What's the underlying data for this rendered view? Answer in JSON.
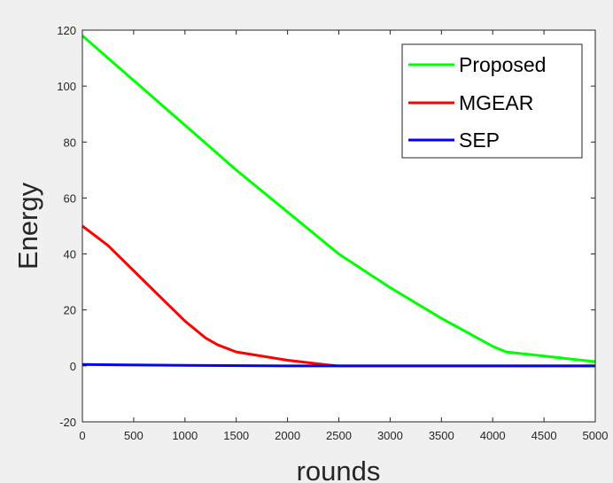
{
  "chart_data": {
    "type": "line",
    "title": "",
    "xlabel": "rounds",
    "ylabel": "Energy",
    "xlim": [
      0,
      5000
    ],
    "ylim": [
      -20,
      120
    ],
    "xticks": [
      0,
      500,
      1000,
      1500,
      2000,
      2500,
      3000,
      3500,
      4000,
      4500,
      5000
    ],
    "yticks": [
      -20,
      0,
      20,
      40,
      60,
      80,
      100,
      120
    ],
    "grid": false,
    "legend_position": "top-right",
    "series": [
      {
        "name": "Proposed",
        "color": "#00ff00",
        "x": [
          0,
          500,
          1000,
          1500,
          2000,
          2100,
          2500,
          3000,
          3500,
          4000,
          4130,
          4500,
          5000
        ],
        "y": [
          118,
          102,
          86,
          70,
          55,
          52,
          40,
          28,
          17,
          7,
          5,
          3.5,
          1.5
        ]
      },
      {
        "name": "MGEAR",
        "color": "#ff0000",
        "x": [
          0,
          250,
          500,
          750,
          1000,
          1200,
          1320,
          1500,
          2000,
          2400,
          2500,
          5000
        ],
        "y": [
          50,
          43,
          34,
          25,
          16,
          10,
          7.5,
          5,
          2,
          0.3,
          0,
          0
        ]
      },
      {
        "name": "SEP",
        "color": "#0000ff",
        "x": [
          0,
          1000,
          2000,
          3000,
          4000,
          5000
        ],
        "y": [
          0.5,
          0.2,
          0,
          0,
          0,
          0
        ]
      }
    ]
  }
}
